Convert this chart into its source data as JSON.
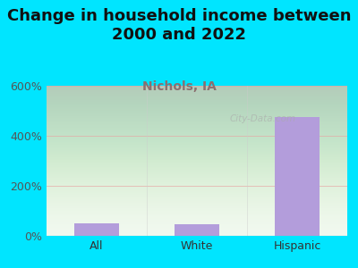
{
  "title": "Change in household income between\n2000 and 2022",
  "subtitle": "Nichols, IA",
  "categories": [
    "All",
    "White",
    "Hispanic"
  ],
  "values": [
    50,
    45,
    475
  ],
  "bar_color": "#b39ddb",
  "background_color": "#00e5ff",
  "plot_bg_color": "#f0f8ee",
  "grid_color": "#e8a0a0",
  "title_fontsize": 13,
  "subtitle_fontsize": 10,
  "tick_fontsize": 9,
  "ylim": [
    0,
    600
  ],
  "yticks": [
    0,
    200,
    400,
    600
  ],
  "ytick_labels": [
    "0%",
    "200%",
    "400%",
    "600%"
  ],
  "watermark": "City-Data.com",
  "subtitle_color": "#8b6f6f",
  "title_color": "#111111"
}
